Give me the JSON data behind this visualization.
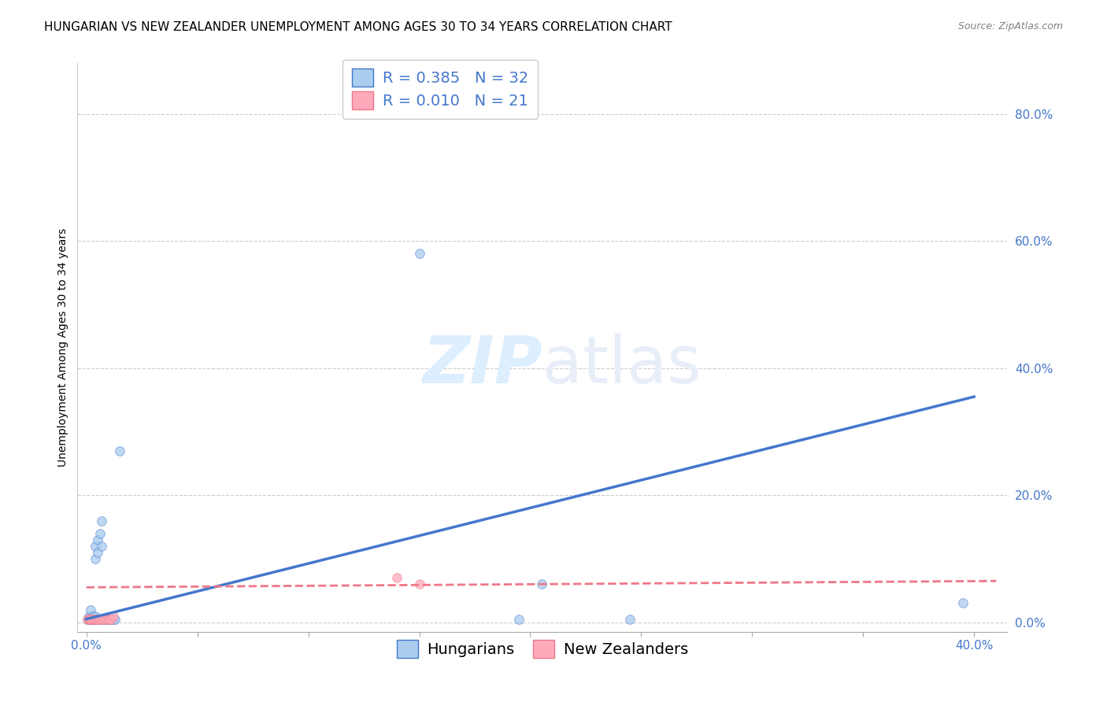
{
  "title": "HUNGARIAN VS NEW ZEALANDER UNEMPLOYMENT AMONG AGES 30 TO 34 YEARS CORRELATION CHART",
  "source": "Source: ZipAtlas.com",
  "ylabel": "Unemployment Among Ages 30 to 34 years",
  "watermark_zip": "ZIP",
  "watermark_atlas": "atlas",
  "xlim": [
    -0.004,
    0.415
  ],
  "ylim": [
    -0.015,
    0.88
  ],
  "x_ticks": [
    0.0,
    0.05,
    0.1,
    0.15,
    0.2,
    0.25,
    0.3,
    0.35,
    0.4
  ],
  "x_tick_labels": [
    "0.0%",
    "",
    "",
    "",
    "",
    "",
    "",
    "",
    "40.0%"
  ],
  "y_ticks": [
    0.0,
    0.2,
    0.4,
    0.6,
    0.8
  ],
  "y_tick_labels": [
    "0.0%",
    "20.0%",
    "40.0%",
    "60.0%",
    "80.0%"
  ],
  "blue_scatter_x": [
    0.0005,
    0.001,
    0.0015,
    0.002,
    0.002,
    0.002,
    0.003,
    0.003,
    0.003,
    0.004,
    0.004,
    0.004,
    0.005,
    0.005,
    0.006,
    0.006,
    0.006,
    0.007,
    0.007,
    0.008,
    0.008,
    0.009,
    0.01,
    0.011,
    0.012,
    0.013,
    0.015,
    0.15,
    0.195,
    0.205,
    0.245,
    0.395
  ],
  "blue_scatter_y": [
    0.005,
    0.01,
    0.005,
    0.005,
    0.02,
    0.005,
    0.005,
    0.01,
    0.005,
    0.01,
    0.12,
    0.1,
    0.13,
    0.11,
    0.14,
    0.005,
    0.005,
    0.16,
    0.12,
    0.005,
    0.005,
    0.005,
    0.005,
    0.005,
    0.005,
    0.005,
    0.27,
    0.58,
    0.005,
    0.06,
    0.005,
    0.03
  ],
  "pink_scatter_x": [
    0.0005,
    0.001,
    0.001,
    0.0015,
    0.002,
    0.002,
    0.003,
    0.003,
    0.004,
    0.004,
    0.005,
    0.005,
    0.006,
    0.007,
    0.008,
    0.009,
    0.01,
    0.011,
    0.012,
    0.14,
    0.15
  ],
  "pink_scatter_y": [
    0.005,
    0.005,
    0.005,
    0.005,
    0.005,
    0.005,
    0.005,
    0.005,
    0.005,
    0.005,
    0.005,
    0.005,
    0.005,
    0.005,
    0.005,
    0.005,
    0.005,
    0.005,
    0.01,
    0.07,
    0.06
  ],
  "blue_R": 0.385,
  "blue_N": 32,
  "pink_R": 0.01,
  "pink_N": 21,
  "blue_line_color": "#4477CC",
  "pink_line_color": "#EE7788",
  "blue_scatter_color": "#AACCEE",
  "pink_scatter_color": "#FFAABB",
  "background_color": "#ffffff",
  "grid_color": "#cccccc",
  "title_fontsize": 11,
  "label_fontsize": 10,
  "tick_fontsize": 11,
  "legend_fontsize": 14,
  "source_fontsize": 9,
  "watermark_color": "#ddeeff",
  "watermark_fontsize": 60,
  "scatter_size": 70,
  "scatter_alpha": 0.75,
  "blue_line_x0": 0.0,
  "blue_line_y0": 0.005,
  "blue_line_x1": 0.4,
  "blue_line_y1": 0.355,
  "pink_line_x0": 0.0,
  "pink_line_y0": 0.055,
  "pink_line_x1": 0.41,
  "pink_line_y1": 0.065
}
